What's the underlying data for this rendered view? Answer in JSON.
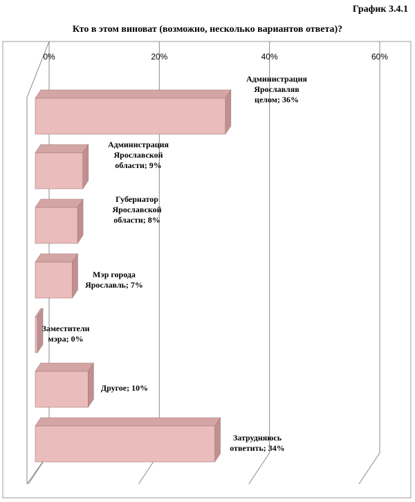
{
  "figure_label": "График 3.4.1",
  "chart_data": {
    "type": "bar",
    "orientation": "horizontal",
    "style": "3d",
    "title": "Кто в этом виноват (возможно, несколько вариантов ответа)?",
    "xlim": [
      0,
      60
    ],
    "ticks": [
      "0%",
      "20%",
      "40%",
      "60%"
    ],
    "tick_values": [
      0,
      20,
      40,
      60
    ],
    "grid": true,
    "legend": "none",
    "bar_color": "#ebbcbc",
    "bar_side_color": "#c08f8f",
    "bar_top_color": "#d4a5a5",
    "categories": [
      "Администрация Ярославля в целом",
      "Администрация Ярославской области",
      "Губернатор Ярославской области",
      "Мэр города Ярославль",
      "Заместители мэра",
      "Другое",
      "Затрудняюсь ответить"
    ],
    "values": [
      36,
      9,
      8,
      7,
      0,
      10,
      34
    ],
    "data_labels": [
      [
        "Администрация",
        "Ярославляв",
        "целом; 36%"
      ],
      [
        "Администрация",
        "Ярославской",
        "области; 9%"
      ],
      [
        "Губернатор",
        "Ярославской",
        "области; 8%"
      ],
      [
        "Мэр города",
        "Ярославль; 7%"
      ],
      [
        "Заместители",
        "мэра; 0%"
      ],
      [
        "Другое; 10%"
      ],
      [
        "Затрудняюсь",
        "ответить; 34%"
      ]
    ]
  }
}
